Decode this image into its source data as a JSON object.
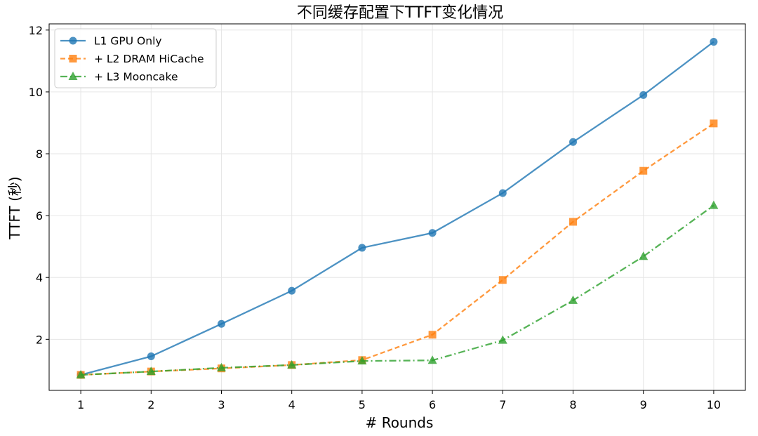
{
  "chart_data": {
    "type": "line",
    "title": "不同缓存配置下TTFT变化情况",
    "xlabel": "# Rounds",
    "ylabel": "TTFT (秒)",
    "x": [
      1,
      2,
      3,
      4,
      5,
      6,
      7,
      8,
      9,
      10
    ],
    "xticks": [
      "1",
      "2",
      "3",
      "4",
      "5",
      "6",
      "7",
      "8",
      "9",
      "10"
    ],
    "yticks": [
      "2",
      "4",
      "6",
      "8",
      "10",
      "12"
    ],
    "ytick_values": [
      2,
      4,
      6,
      8,
      10,
      12
    ],
    "xlim": [
      0.55,
      10.45
    ],
    "ylim": [
      0.35,
      12.2
    ],
    "grid": true,
    "legend_position": "top-left",
    "series": [
      {
        "name": "L1 GPU Only",
        "color": "#1f77b4",
        "marker": "circle",
        "linestyle": "solid",
        "values": [
          0.85,
          1.45,
          2.5,
          3.57,
          4.96,
          5.44,
          6.73,
          8.38,
          9.9,
          11.62
        ]
      },
      {
        "name": "+ L2 DRAM HiCache",
        "color": "#ff7f0e",
        "marker": "square",
        "linestyle": "dashed",
        "values": [
          0.85,
          0.96,
          1.06,
          1.17,
          1.33,
          2.15,
          3.92,
          5.8,
          7.45,
          8.98
        ]
      },
      {
        "name": "+ L3 Mooncake",
        "color": "#2ca02c",
        "marker": "triangle",
        "linestyle": "dashdot",
        "values": [
          0.85,
          0.96,
          1.08,
          1.17,
          1.3,
          1.32,
          1.97,
          3.26,
          4.68,
          6.33
        ]
      }
    ]
  }
}
